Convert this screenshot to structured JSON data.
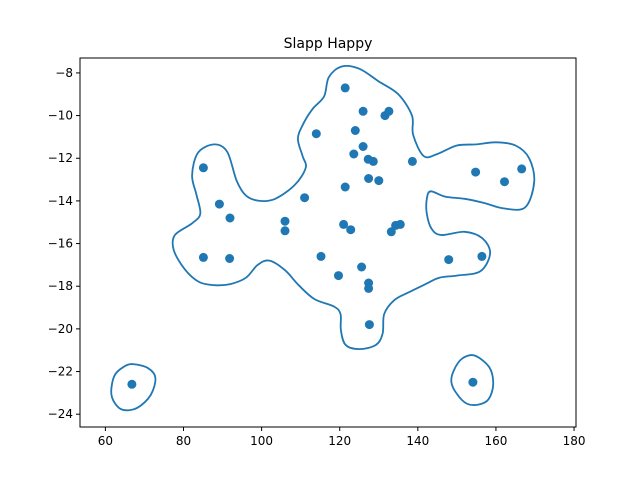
{
  "chart_data": {
    "type": "scatter",
    "title": "Slapp Happy",
    "xlabel": "",
    "ylabel": "",
    "xlim": [
      53.5,
      180.5
    ],
    "ylim": [
      -24.6,
      -7.3
    ],
    "xticks": [
      60,
      80,
      100,
      120,
      140,
      160,
      180
    ],
    "yticks": [
      -8,
      -10,
      -12,
      -14,
      -16,
      -18,
      -20,
      -22,
      -24
    ],
    "grid": false,
    "colors": {
      "points": "#1f77b4",
      "contour": "#1f77b4",
      "frame": "#000000"
    },
    "points": [
      {
        "x": 121.4,
        "y": -8.7
      },
      {
        "x": 126.0,
        "y": -9.8
      },
      {
        "x": 131.6,
        "y": -10.0
      },
      {
        "x": 132.6,
        "y": -9.8
      },
      {
        "x": 124.0,
        "y": -10.7
      },
      {
        "x": 114.0,
        "y": -10.85
      },
      {
        "x": 126.0,
        "y": -11.45
      },
      {
        "x": 123.6,
        "y": -11.8
      },
      {
        "x": 127.3,
        "y": -12.05
      },
      {
        "x": 128.6,
        "y": -12.15
      },
      {
        "x": 138.6,
        "y": -12.15
      },
      {
        "x": 127.4,
        "y": -12.95
      },
      {
        "x": 130.0,
        "y": -13.05
      },
      {
        "x": 121.4,
        "y": -13.35
      },
      {
        "x": 111.0,
        "y": -13.85
      },
      {
        "x": 85.1,
        "y": -12.45
      },
      {
        "x": 89.2,
        "y": -14.15
      },
      {
        "x": 91.9,
        "y": -14.8
      },
      {
        "x": 106.0,
        "y": -14.95
      },
      {
        "x": 106.0,
        "y": -15.4
      },
      {
        "x": 121.0,
        "y": -15.1
      },
      {
        "x": 122.8,
        "y": -15.35
      },
      {
        "x": 133.2,
        "y": -15.45
      },
      {
        "x": 134.3,
        "y": -15.15
      },
      {
        "x": 135.5,
        "y": -15.1
      },
      {
        "x": 85.1,
        "y": -16.65
      },
      {
        "x": 91.8,
        "y": -16.7
      },
      {
        "x": 115.2,
        "y": -16.6
      },
      {
        "x": 125.6,
        "y": -17.1
      },
      {
        "x": 119.7,
        "y": -17.5
      },
      {
        "x": 127.4,
        "y": -17.85
      },
      {
        "x": 127.4,
        "y": -18.1
      },
      {
        "x": 127.6,
        "y": -19.8
      },
      {
        "x": 147.9,
        "y": -16.75
      },
      {
        "x": 156.4,
        "y": -16.6
      },
      {
        "x": 154.8,
        "y": -12.65
      },
      {
        "x": 162.2,
        "y": -13.1
      },
      {
        "x": 166.6,
        "y": -12.5
      },
      {
        "x": 66.8,
        "y": -22.6
      },
      {
        "x": 154.1,
        "y": -22.5
      }
    ],
    "contours": [
      [
        [
          120.5,
          -7.7
        ],
        [
          125,
          -7.8
        ],
        [
          130,
          -8.4
        ],
        [
          135,
          -9.0
        ],
        [
          138.5,
          -10.0
        ],
        [
          138.8,
          -10.9
        ],
        [
          141.5,
          -11.9
        ],
        [
          145,
          -11.8
        ],
        [
          150,
          -11.4
        ],
        [
          155,
          -11.35
        ],
        [
          160,
          -11.25
        ],
        [
          165,
          -11.4
        ],
        [
          168.5,
          -12.0
        ],
        [
          169.8,
          -13.1
        ],
        [
          167.5,
          -14.3
        ],
        [
          162,
          -14.35
        ],
        [
          157,
          -14.1
        ],
        [
          152,
          -13.9
        ],
        [
          147,
          -13.8
        ],
        [
          143.3,
          -13.55
        ],
        [
          142.3,
          -13.9
        ],
        [
          142.3,
          -14.6
        ],
        [
          143.5,
          -15.3
        ],
        [
          146,
          -15.6
        ],
        [
          152,
          -15.45
        ],
        [
          156.5,
          -15.75
        ],
        [
          158.5,
          -16.45
        ],
        [
          156,
          -17.3
        ],
        [
          150,
          -17.5
        ],
        [
          145.5,
          -17.6
        ],
        [
          142,
          -17.9
        ],
        [
          137.5,
          -18.3
        ],
        [
          134,
          -18.65
        ],
        [
          131.4,
          -19.3
        ],
        [
          131,
          -20.2
        ],
        [
          129.3,
          -20.75
        ],
        [
          125,
          -20.95
        ],
        [
          121.5,
          -20.75
        ],
        [
          120.3,
          -20.05
        ],
        [
          120.2,
          -19.3
        ],
        [
          118.5,
          -18.95
        ],
        [
          113.5,
          -18.6
        ],
        [
          109.5,
          -17.95
        ],
        [
          106,
          -17.25
        ],
        [
          102,
          -16.8
        ],
        [
          99,
          -17.0
        ],
        [
          96,
          -17.6
        ],
        [
          92,
          -17.9
        ],
        [
          88,
          -17.95
        ],
        [
          84,
          -17.8
        ],
        [
          80.3,
          -17.2
        ],
        [
          77.5,
          -16.3
        ],
        [
          77.8,
          -15.6
        ],
        [
          82.2,
          -15.05
        ],
        [
          84.3,
          -14.6
        ],
        [
          83.3,
          -13.7
        ],
        [
          82.2,
          -12.8
        ],
        [
          83.7,
          -11.75
        ],
        [
          87.8,
          -11.35
        ],
        [
          91.2,
          -11.7
        ],
        [
          93.6,
          -13.05
        ],
        [
          96,
          -13.75
        ],
        [
          99.5,
          -14.0
        ],
        [
          103.5,
          -13.9
        ],
        [
          108.5,
          -13.25
        ],
        [
          111.3,
          -12.45
        ],
        [
          110.5,
          -11.9
        ],
        [
          109.3,
          -11.1
        ],
        [
          110.5,
          -10.45
        ],
        [
          113,
          -9.7
        ],
        [
          116,
          -9.1
        ],
        [
          117.2,
          -8.2
        ]
      ],
      [
        [
          67,
          -21.65
        ],
        [
          71,
          -21.85
        ],
        [
          72.8,
          -22.3
        ],
        [
          71.6,
          -23.1
        ],
        [
          68.2,
          -23.7
        ],
        [
          64.5,
          -23.8
        ],
        [
          62.3,
          -23.45
        ],
        [
          61.5,
          -22.95
        ],
        [
          62.3,
          -22.2
        ],
        [
          64.5,
          -21.8
        ]
      ],
      [
        [
          154.5,
          -21.25
        ],
        [
          158.3,
          -21.8
        ],
        [
          159.3,
          -22.6
        ],
        [
          158.1,
          -23.3
        ],
        [
          155.5,
          -23.55
        ],
        [
          152.5,
          -23.5
        ],
        [
          150,
          -23.05
        ],
        [
          148.6,
          -22.5
        ],
        [
          149.2,
          -21.95
        ],
        [
          151.3,
          -21.4
        ]
      ]
    ]
  }
}
